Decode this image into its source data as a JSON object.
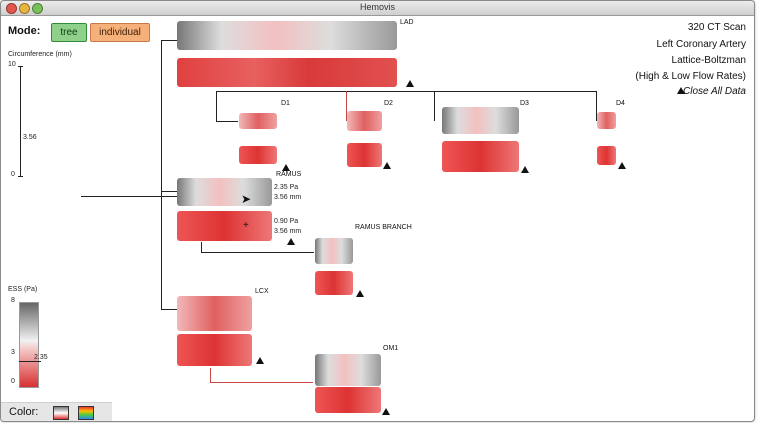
{
  "window": {
    "title": "Hemovis"
  },
  "mode": {
    "label": "Mode:",
    "tree": "tree",
    "individual": "individual"
  },
  "circumference": {
    "label": "Circumference (mm)",
    "max": "10",
    "mid": "3.56",
    "min": "0"
  },
  "ess": {
    "label": "ESS (Pa)",
    "max": "8",
    "mid": "3",
    "marker": "2.35",
    "min": "0"
  },
  "color_legend": {
    "label": "Color:"
  },
  "info": {
    "line1": "320 CT Scan",
    "line2": "Left Coronary Artery",
    "line3": "Lattice-Boltzman",
    "line4": "(High & Low Flow Rates)",
    "close_all": "Close All Data"
  },
  "vessels": {
    "lad": "LAD",
    "d1": "D1",
    "d2": "D2",
    "d3": "D3",
    "d4": "D4",
    "ramus": "RAMUS",
    "ramus_branch": "RAMUS BRANCH",
    "lcx": "LCX",
    "om1": "OM1"
  },
  "ramus_readout": {
    "hi_pa": "2.35 Pa",
    "hi_mm": "3.56 mm",
    "lo_pa": "0.90 Pa",
    "lo_mm": "3.56 mm"
  }
}
